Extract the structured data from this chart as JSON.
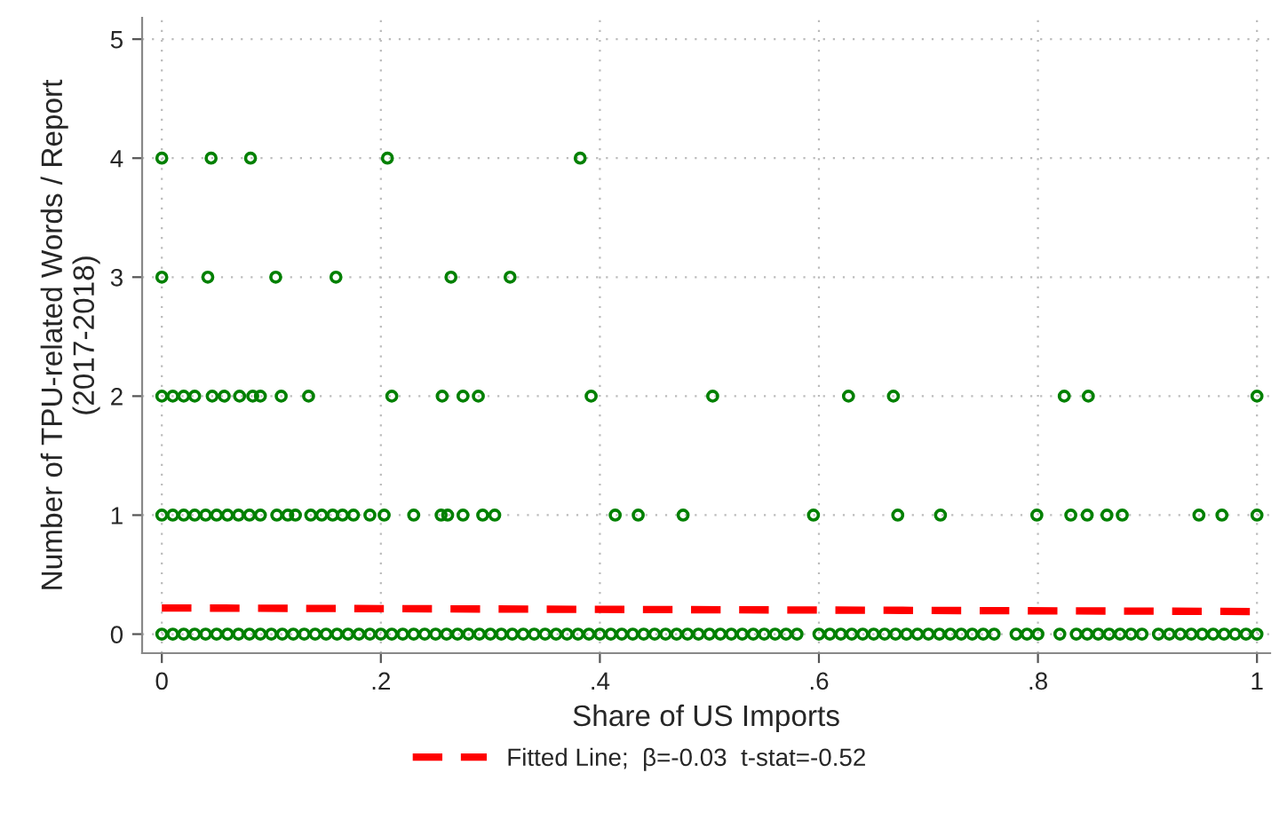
{
  "chart_data": {
    "type": "scatter",
    "xlabel": "Share of US Imports",
    "ylabel": "Number of TPU-related Words / Report\n(2017-2018)",
    "xlim": [
      -0.018,
      1.012
    ],
    "ylim": [
      -0.16,
      5.18
    ],
    "xticks": [
      0,
      {
        "value": 0.2,
        "label": ".2"
      },
      {
        "value": 0.4,
        "label": ".4"
      },
      {
        "value": 0.6,
        "label": ".6"
      },
      {
        "value": 0.8,
        "label": ".8"
      },
      1
    ],
    "yticks": [
      0,
      1,
      2,
      3,
      4,
      5
    ],
    "grid": true,
    "legend": "bottom",
    "marker": "circle",
    "series": [
      {
        "color": "#008000",
        "x": [
          0,
          0.01,
          0.02,
          0.03,
          0.04,
          0.05,
          0.06,
          0.07,
          0.08,
          0.09,
          0.1,
          0.11,
          0.12,
          0.13,
          0.14,
          0.15,
          0.16,
          0.17,
          0.18,
          0.19,
          0.2,
          0.21,
          0.22,
          0.23,
          0.24,
          0.25,
          0.26,
          0.27,
          0.28,
          0.29,
          0.3,
          0.31,
          0.32,
          0.33,
          0.34,
          0.35,
          0.36,
          0.37,
          0.38,
          0.39,
          0.4,
          0.41,
          0.42,
          0.43,
          0.44,
          0.45,
          0.46,
          0.47,
          0.48,
          0.49,
          0.5,
          0.51,
          0.52,
          0.53,
          0.54,
          0.55,
          0.56,
          0.57,
          0.58,
          0.6,
          0.61,
          0.62,
          0.63,
          0.64,
          0.65,
          0.66,
          0.67,
          0.68,
          0.69,
          0.7,
          0.71,
          0.72,
          0.73,
          0.74,
          0.75,
          0.76,
          0.78,
          0.79,
          0.8,
          0.82,
          0.835,
          0.845,
          0.855,
          0.865,
          0.875,
          0.885,
          0.895,
          0.91,
          0.92,
          0.93,
          0.94,
          0.95,
          0.96,
          0.97,
          0.98,
          0.99,
          1
        ],
        "values": [
          0,
          0,
          0,
          0,
          0,
          0,
          0,
          0,
          0,
          0,
          0,
          0,
          0,
          0,
          0,
          0,
          0,
          0,
          0,
          0,
          0,
          0,
          0,
          0,
          0,
          0,
          0,
          0,
          0,
          0,
          0,
          0,
          0,
          0,
          0,
          0,
          0,
          0,
          0,
          0,
          0,
          0,
          0,
          0,
          0,
          0,
          0,
          0,
          0,
          0,
          0,
          0,
          0,
          0,
          0,
          0,
          0,
          0,
          0,
          0,
          0,
          0,
          0,
          0,
          0,
          0,
          0,
          0,
          0,
          0,
          0,
          0,
          0,
          0,
          0,
          0,
          0,
          0,
          0,
          0,
          0,
          0,
          0,
          0,
          0,
          0,
          0,
          0,
          0,
          0,
          0,
          0,
          0,
          0,
          0,
          0,
          0
        ]
      },
      {
        "color": "#008000",
        "x": [
          0,
          0.01,
          0.02,
          0.03,
          0.04,
          0.05,
          0.06,
          0.07,
          0.08,
          0.09,
          0.105,
          0.115,
          0.122,
          0.136,
          0.146,
          0.156,
          0.165,
          0.175,
          0.19,
          0.203,
          0.23,
          0.255,
          0.261,
          0.275,
          0.293,
          0.304,
          0.414,
          0.435,
          0.476,
          0.595,
          0.672,
          0.711,
          0.799,
          0.83,
          0.845,
          0.863,
          0.877,
          0.947,
          0.968,
          1
        ],
        "values": [
          1,
          1,
          1,
          1,
          1,
          1,
          1,
          1,
          1,
          1,
          1,
          1,
          1,
          1,
          1,
          1,
          1,
          1,
          1,
          1,
          1,
          1,
          1,
          1,
          1,
          1,
          1,
          1,
          1,
          1,
          1,
          1,
          1,
          1,
          1,
          1,
          1,
          1,
          1,
          1
        ]
      },
      {
        "color": "#008000",
        "x": [
          0,
          0.01,
          0.02,
          0.03,
          0.046,
          0.057,
          0.071,
          0.083,
          0.09,
          0.109,
          0.134,
          0.21,
          0.256,
          0.275,
          0.289,
          0.392,
          0.503,
          0.627,
          0.668,
          0.824,
          0.846,
          1
        ],
        "values": [
          2,
          2,
          2,
          2,
          2,
          2,
          2,
          2,
          2,
          2,
          2,
          2,
          2,
          2,
          2,
          2,
          2,
          2,
          2,
          2,
          2,
          2
        ]
      },
      {
        "color": "#008000",
        "x": [
          0,
          0.042,
          0.104,
          0.159,
          0.264,
          0.318
        ],
        "values": [
          3,
          3,
          3,
          3,
          3,
          3
        ]
      },
      {
        "color": "#008000",
        "x": [
          0,
          0.045,
          0.081,
          0.206,
          0.382
        ],
        "values": [
          4,
          4,
          4,
          4,
          4
        ]
      },
      {
        "type": "line",
        "name": "Fitted Line;  β=-0.03  t-stat=-0.52",
        "color": "#ff0000",
        "line_style": "dashed",
        "marker": "none",
        "x": [
          0,
          1
        ],
        "values": [
          0.22,
          0.19
        ]
      }
    ]
  }
}
